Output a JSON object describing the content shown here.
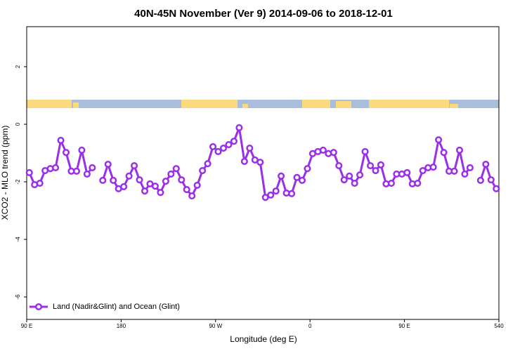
{
  "chart_data": {
    "type": "line",
    "title": "40N-45N November (Ver 9)   2014-09-06 to 2018-12-01",
    "x_label": "Longitude (deg E)",
    "y_label": "XCO2 - MLO trend (ppm)",
    "xlim": [
      90,
      540
    ],
    "ylim": [
      -6.78,
      3.39
    ],
    "xticks": [
      {
        "value": 90,
        "label": "90 E"
      },
      180,
      {
        "value": 270,
        "label": "90 W"
      },
      {
        "value": 360,
        "label": "0"
      },
      {
        "value": 450,
        "label": "90 E"
      },
      540
    ],
    "yticks": [
      2,
      0,
      -2,
      -4,
      -6
    ],
    "legend": "bottom-left",
    "x": [
      92.5,
      97.5,
      102.5,
      107.5,
      112.5,
      117.5,
      122.5,
      127.5,
      132.5,
      137.5,
      142.5,
      147.5,
      152.5,
      157.5,
      162.5,
      167.5,
      172.5,
      177.5,
      182.5,
      187.5,
      192.5,
      197.5,
      202.5,
      207.5,
      212.5,
      217.5,
      222.5,
      227.5,
      232.5,
      237.5,
      242.5,
      247.5,
      252.5,
      257.5,
      262.5,
      267.5,
      272.5,
      277.5,
      282.5,
      287.5,
      292.5,
      297.5,
      302.5,
      307.5,
      312.5,
      317.5,
      322.5,
      327.5,
      332.5,
      337.5,
      342.5,
      347.5,
      352.5,
      357.5,
      362.5,
      367.5,
      372.5,
      377.5,
      382.5,
      387.5,
      392.5,
      397.5,
      402.5,
      407.5,
      412.5,
      417.5,
      422.5,
      427.5,
      432.5,
      437.5,
      442.5,
      447.5,
      452.5,
      457.5,
      462.5,
      467.5,
      472.5,
      477.5,
      482.5,
      487.5,
      492.5,
      497.5,
      502.5,
      507.5,
      512.5,
      517.5,
      522.5,
      527.5,
      532.5,
      537.5
    ],
    "series": [
      {
        "name": "Land (Nadir&Glint) and Ocean (Glint)",
        "color": "#9b2ee6",
        "values": [
          -1.68,
          -2.1,
          -2.05,
          -1.61,
          -1.54,
          -1.51,
          -0.56,
          -0.98,
          -1.63,
          -1.63,
          -0.9,
          -1.73,
          -1.51,
          null,
          -1.95,
          -1.39,
          -1.95,
          -2.24,
          -2.17,
          -1.8,
          -1.44,
          -1.93,
          -2.32,
          -2.07,
          -2.15,
          -2.37,
          -1.98,
          -1.73,
          -1.54,
          -1.93,
          -2.27,
          -2.49,
          -2.12,
          -1.61,
          -1.37,
          -0.78,
          -0.95,
          -0.83,
          -0.71,
          -0.59,
          -0.12,
          -1.29,
          -0.83,
          -1.24,
          -1.32,
          -2.54,
          -2.46,
          -2.32,
          -1.8,
          -2.39,
          -2.41,
          -1.85,
          -1.95,
          -1.54,
          -1.02,
          -0.95,
          -0.9,
          -1.02,
          -0.98,
          -1.44,
          -1.93,
          -1.8,
          -2.05,
          -1.76,
          -0.95,
          -1.44,
          -1.61,
          -1.41,
          -2.07,
          -2.05,
          -1.73,
          -1.73,
          -1.68,
          -2.07,
          -2.05,
          -1.61,
          -1.51,
          -1.49,
          -0.54,
          -0.98,
          -1.63,
          -1.63,
          -0.9,
          -1.73,
          -1.51,
          null,
          -1.95,
          -1.39,
          -1.93,
          -2.24
        ]
      }
    ]
  }
}
